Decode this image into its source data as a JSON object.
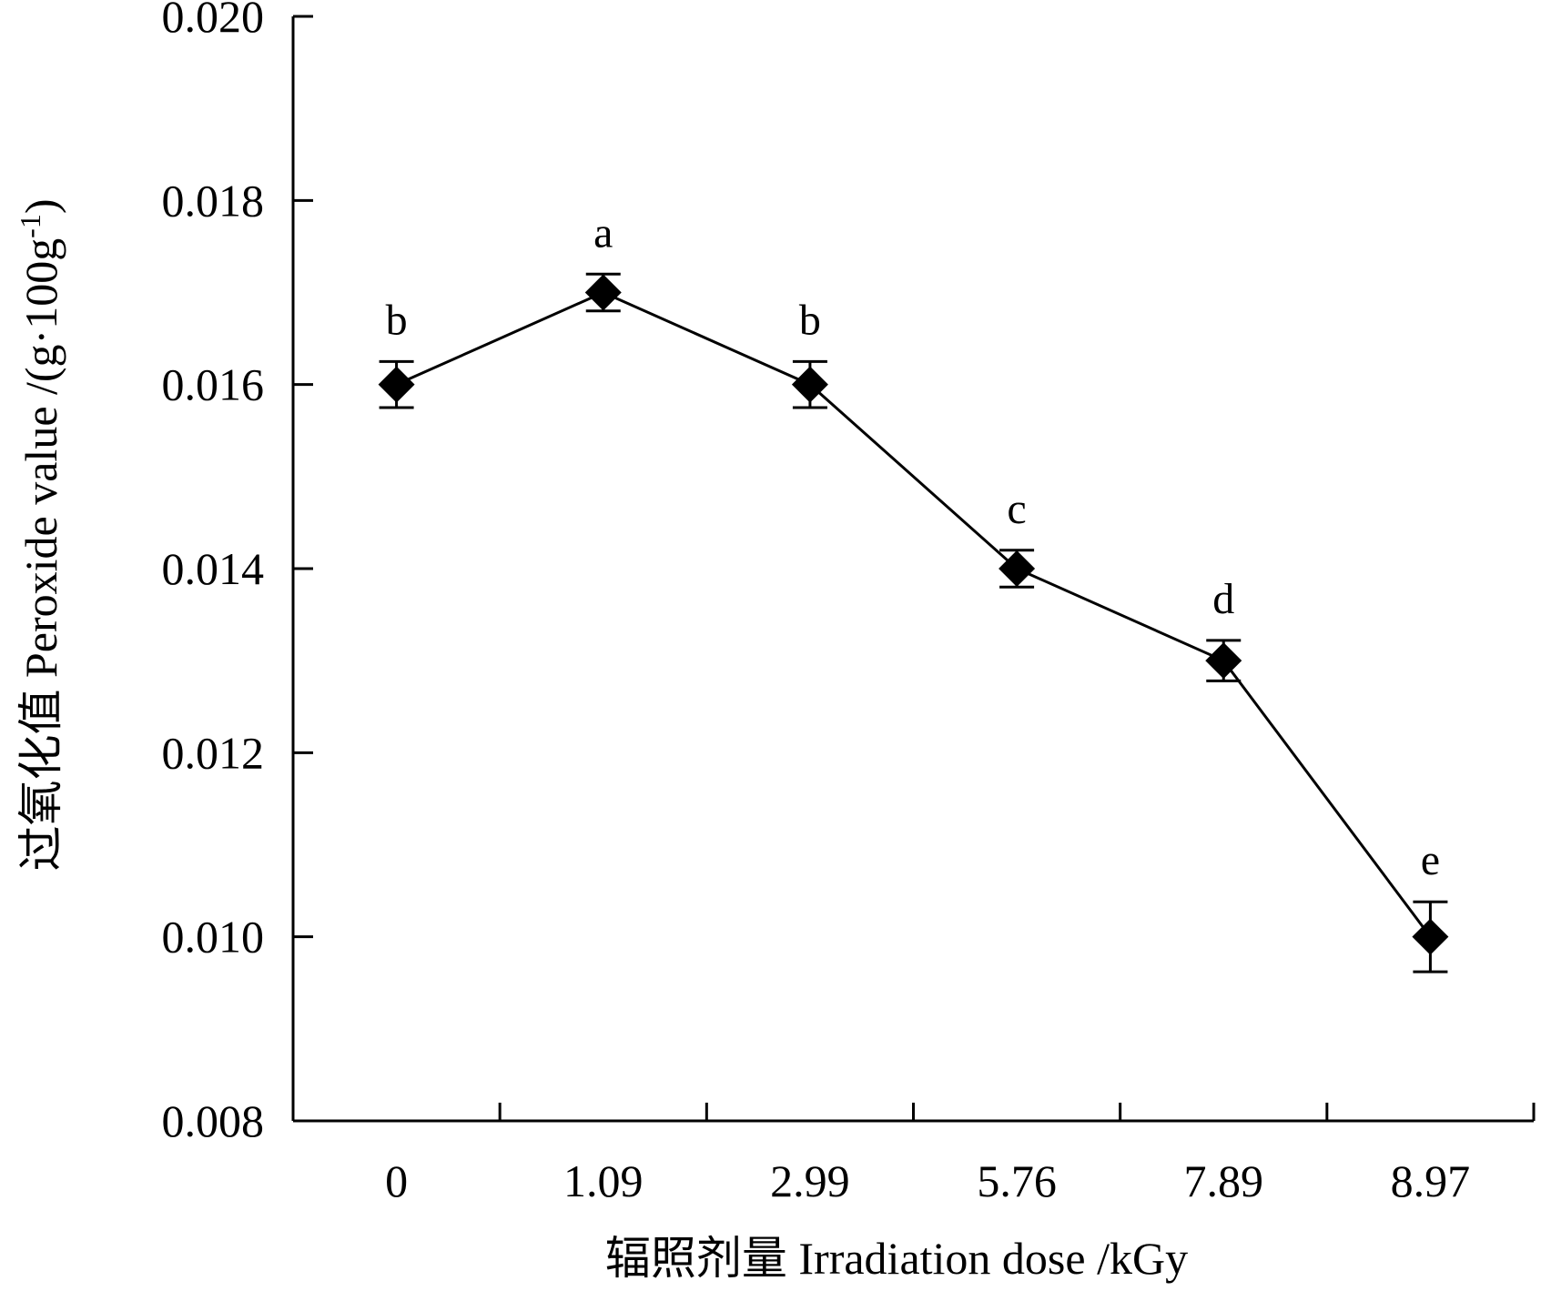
{
  "chart_data": {
    "type": "line",
    "categories": [
      "0",
      "1.09",
      "2.99",
      "5.76",
      "7.89",
      "8.97"
    ],
    "series": [
      {
        "values": [
          0.016,
          0.017,
          0.016,
          0.014,
          0.013,
          0.01
        ],
        "error": [
          0.00025,
          0.0002,
          0.00025,
          0.0002,
          0.00022,
          0.00038
        ],
        "marker": "diamond",
        "color": "#000000"
      }
    ],
    "significance_labels": [
      "b",
      "a",
      "b",
      "c",
      "d",
      "e"
    ],
    "xlabel": "辐照剂量 Irradiation dose /kGy",
    "ylabel_main": "过氧化值 Peroxide value /(g·100g",
    "ylabel_sup": "-1",
    "ylabel_close": ")",
    "ylim": [
      0.008,
      0.02
    ],
    "yticks": [
      "0.008",
      "0.010",
      "0.012",
      "0.014",
      "0.016",
      "0.018",
      "0.020"
    ],
    "grid": false,
    "legend": "none"
  }
}
